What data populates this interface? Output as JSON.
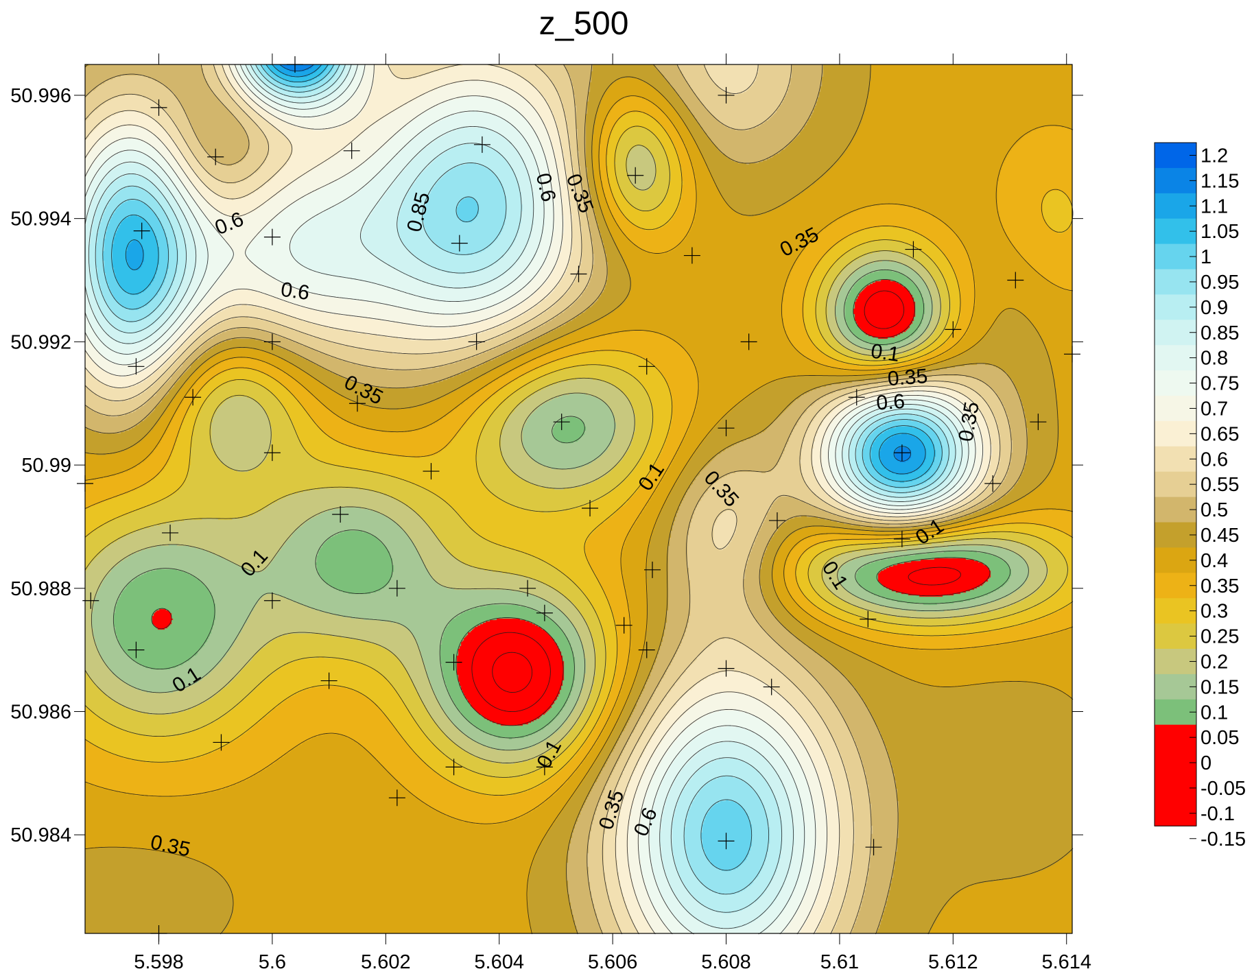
{
  "chart_data": {
    "type": "contour",
    "title": "z_500",
    "xlabel": "",
    "ylabel": "",
    "xlim": [
      5.5967,
      5.6141
    ],
    "ylim": [
      50.9824,
      50.9965
    ],
    "x_ticks": [
      {
        "value": 5.598,
        "label": "5.598"
      },
      {
        "value": 5.6,
        "label": "5.6"
      },
      {
        "value": 5.602,
        "label": "5.602"
      },
      {
        "value": 5.604,
        "label": "5.604"
      },
      {
        "value": 5.606,
        "label": "5.606"
      },
      {
        "value": 5.608,
        "label": "5.608"
      },
      {
        "value": 5.61,
        "label": "5.61"
      },
      {
        "value": 5.612,
        "label": "5.612"
      },
      {
        "value": 5.614,
        "label": "5.614"
      }
    ],
    "y_ticks": [
      {
        "value": 50.984,
        "label": "50.984"
      },
      {
        "value": 50.986,
        "label": "50.986"
      },
      {
        "value": 50.988,
        "label": "50.988"
      },
      {
        "value": 50.99,
        "label": "50.99"
      },
      {
        "value": 50.992,
        "label": "50.992"
      },
      {
        "value": 50.994,
        "label": "50.994"
      },
      {
        "value": 50.996,
        "label": "50.996"
      }
    ],
    "contour_interval": 0.05,
    "background_value": 0.38,
    "features": [
      {
        "x": 5.5975,
        "y": 50.9934,
        "value": 1.02,
        "sx": 0.0009,
        "sy": 0.0016
      },
      {
        "x": 5.599,
        "y": 50.995,
        "value": 0.28,
        "sx": 0.0007,
        "sy": 0.0008
      },
      {
        "x": 5.6004,
        "y": 50.9968,
        "value": 1.18,
        "sx": 0.0008,
        "sy": 0.0007
      },
      {
        "x": 5.6004,
        "y": 50.9935,
        "value": 0.72,
        "sx": 0.0014,
        "sy": 0.0013
      },
      {
        "x": 5.6036,
        "y": 50.9942,
        "value": 0.93,
        "sx": 0.0014,
        "sy": 0.0017
      },
      {
        "x": 5.6064,
        "y": 50.9949,
        "value": 0.08,
        "sx": 0.0007,
        "sy": 0.0009
      },
      {
        "x": 5.608,
        "y": 50.9965,
        "value": 0.57,
        "sx": 0.0012,
        "sy": 0.0012
      },
      {
        "x": 5.6108,
        "y": 50.9924,
        "value": -0.07,
        "sx": 0.0008,
        "sy": 0.0008
      },
      {
        "x": 5.6111,
        "y": 50.9902,
        "value": 1.12,
        "sx": 0.001,
        "sy": 0.0009
      },
      {
        "x": 5.6115,
        "y": 50.9883,
        "value": -0.08,
        "sx": 0.0016,
        "sy": 0.0006
      },
      {
        "x": 5.613,
        "y": 50.9927,
        "value": 0.43,
        "sx": 0.0007,
        "sy": 0.0012
      },
      {
        "x": 5.6137,
        "y": 50.994,
        "value": 0.28,
        "sx": 0.0008,
        "sy": 0.001
      },
      {
        "x": 5.608,
        "y": 50.9889,
        "value": 0.57,
        "sx": 0.0008,
        "sy": 0.0011
      },
      {
        "x": 5.608,
        "y": 50.984,
        "value": 0.98,
        "sx": 0.0014,
        "sy": 0.0018
      },
      {
        "x": 5.6043,
        "y": 50.9866,
        "value": -0.07,
        "sx": 0.0012,
        "sy": 0.0011
      },
      {
        "x": 5.6051,
        "y": 50.9907,
        "value": 0.06,
        "sx": 0.0013,
        "sy": 0.001
      },
      {
        "x": 5.5993,
        "y": 50.991,
        "value": 0.13,
        "sx": 0.001,
        "sy": 0.0009
      },
      {
        "x": 5.598,
        "y": 50.9875,
        "value": 0.05,
        "sx": 0.0014,
        "sy": 0.0014
      },
      {
        "x": 5.6015,
        "y": 50.9885,
        "value": 0.09,
        "sx": 0.0012,
        "sy": 0.0011
      },
      {
        "x": 5.604,
        "y": 50.9888,
        "value": 0.38,
        "sx": 0.0007,
        "sy": 0.0006
      },
      {
        "x": 5.5975,
        "y": 50.983,
        "value": 0.42,
        "sx": 0.0016,
        "sy": 0.001
      },
      {
        "x": 5.613,
        "y": 50.985,
        "value": 0.42,
        "sx": 0.0014,
        "sy": 0.0014
      }
    ],
    "sample_points": [
      [
        5.598,
        50.9958
      ],
      [
        5.6004,
        50.9965
      ],
      [
        5.599,
        50.995
      ],
      [
        5.6014,
        50.9951
      ],
      [
        5.6037,
        50.9952
      ],
      [
        5.6064,
        50.9947
      ],
      [
        5.608,
        50.996
      ],
      [
        5.5977,
        50.9938
      ],
      [
        5.6,
        50.9937
      ],
      [
        5.6033,
        50.9936
      ],
      [
        5.6074,
        50.9934
      ],
      [
        5.6113,
        50.9935
      ],
      [
        5.6131,
        50.993
      ],
      [
        5.6054,
        50.9931
      ],
      [
        5.612,
        50.9922
      ],
      [
        5.5976,
        50.9916
      ],
      [
        5.6,
        50.992
      ],
      [
        5.6036,
        50.992
      ],
      [
        5.6066,
        50.9916
      ],
      [
        5.6084,
        50.992
      ],
      [
        5.6141,
        50.9918
      ],
      [
        5.5986,
        50.9911
      ],
      [
        5.6015,
        50.991
      ],
      [
        5.6051,
        50.9907
      ],
      [
        5.6103,
        50.9911
      ],
      [
        5.6135,
        50.9907
      ],
      [
        5.6,
        50.9902
      ],
      [
        5.6028,
        50.9899
      ],
      [
        5.608,
        50.9906
      ],
      [
        5.6111,
        50.9902
      ],
      [
        5.5967,
        50.9897
      ],
      [
        5.6127,
        50.9897
      ],
      [
        5.5982,
        50.9889
      ],
      [
        5.6012,
        50.9892
      ],
      [
        5.6056,
        50.9893
      ],
      [
        5.6089,
        50.9891
      ],
      [
        5.6111,
        50.9888
      ],
      [
        5.6067,
        50.9883
      ],
      [
        5.5968,
        50.9878
      ],
      [
        5.6,
        50.9878
      ],
      [
        5.6022,
        50.988
      ],
      [
        5.6045,
        50.988
      ],
      [
        5.6048,
        50.9876
      ],
      [
        5.6062,
        50.9874
      ],
      [
        5.6105,
        50.9875
      ],
      [
        5.5976,
        50.987
      ],
      [
        5.6066,
        50.987
      ],
      [
        5.608,
        50.9867
      ],
      [
        5.6032,
        50.9868
      ],
      [
        5.601,
        50.9865
      ],
      [
        5.6088,
        50.9864
      ],
      [
        5.5991,
        50.9855
      ],
      [
        5.6032,
        50.9851
      ],
      [
        5.6048,
        50.9851
      ],
      [
        5.6022,
        50.9846
      ],
      [
        5.608,
        50.9839
      ],
      [
        5.6106,
        50.9838
      ],
      [
        5.598,
        50.9824
      ]
    ],
    "contour_labels": [
      {
        "x": 5.59925,
        "y": 50.9939,
        "text": "0.6",
        "angle": -22
      },
      {
        "x": 5.6004,
        "y": 50.9928,
        "text": "0.6",
        "angle": 8
      },
      {
        "x": 5.6026,
        "y": 50.9941,
        "text": "0.85",
        "angle": -76
      },
      {
        "x": 5.6048,
        "y": 50.9945,
        "text": "0.6",
        "angle": 77
      },
      {
        "x": 5.6054,
        "y": 50.9944,
        "text": "0.35",
        "angle": 68
      },
      {
        "x": 5.6016,
        "y": 50.9912,
        "text": "0.35",
        "angle": 27
      },
      {
        "x": 5.6093,
        "y": 50.9936,
        "text": "0.35",
        "angle": -27
      },
      {
        "x": 5.6108,
        "y": 50.9918,
        "text": "0.1",
        "angle": 8
      },
      {
        "x": 5.6112,
        "y": 50.9914,
        "text": "0.35",
        "angle": -4
      },
      {
        "x": 5.6109,
        "y": 50.991,
        "text": "0.6",
        "angle": -4
      },
      {
        "x": 5.6123,
        "y": 50.9907,
        "text": "0.35",
        "angle": -80
      },
      {
        "x": 5.6116,
        "y": 50.9889,
        "text": "0.1",
        "angle": -34
      },
      {
        "x": 5.6067,
        "y": 50.9898,
        "text": "0.1",
        "angle": -56
      },
      {
        "x": 5.6079,
        "y": 50.9896,
        "text": "0.35",
        "angle": 48
      },
      {
        "x": 5.6099,
        "y": 50.9882,
        "text": "0.1",
        "angle": 57
      },
      {
        "x": 5.5997,
        "y": 50.9884,
        "text": "0.1",
        "angle": -48
      },
      {
        "x": 5.5985,
        "y": 50.9865,
        "text": "0.1",
        "angle": -33
      },
      {
        "x": 5.6049,
        "y": 50.9853,
        "text": "0.1",
        "angle": -62
      },
      {
        "x": 5.5982,
        "y": 50.9838,
        "text": "0.35",
        "angle": 12
      },
      {
        "x": 5.606,
        "y": 50.9844,
        "text": "0.35",
        "angle": -72
      },
      {
        "x": 5.6066,
        "y": 50.9842,
        "text": "0.6",
        "angle": -66
      }
    ],
    "legend": {
      "levels": [
        "1.2",
        "1.15",
        "1.1",
        "1.05",
        "1",
        "0.95",
        "0.9",
        "0.85",
        "0.8",
        "0.75",
        "0.7",
        "0.65",
        "0.6",
        "0.55",
        "0.5",
        "0.45",
        "0.4",
        "0.35",
        "0.3",
        "0.25",
        "0.2",
        "0.15",
        "0.1",
        "0.05",
        "0",
        "-0.05",
        "-0.1",
        "-0.15"
      ],
      "colors": [
        "#0066e8",
        "#0a84e6",
        "#1aa6e8",
        "#32c0ea",
        "#66d4ee",
        "#97e4f0",
        "#b8eef2",
        "#d0f3f2",
        "#e2f7f2",
        "#eef9f0",
        "#f6f6e6",
        "#faf0d4",
        "#f2e0b2",
        "#e6cf94",
        "#d2b66c",
        "#c4a02c",
        "#dba612",
        "#edb216",
        "#eac422",
        "#dcc840",
        "#c8c87e",
        "#a6c896",
        "#7cc07a",
        "#ff0000",
        "#ff0000",
        "#ff0000",
        "#ff0000"
      ],
      "position": "right"
    },
    "grid": false
  }
}
